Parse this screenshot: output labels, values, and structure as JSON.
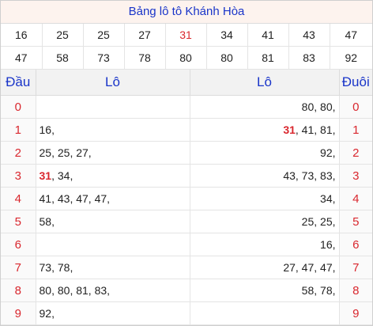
{
  "title": "Bảng lô tô Khánh Hòa",
  "numbers_row1": [
    "16",
    "25",
    "25",
    "27",
    "31",
    "34",
    "41",
    "43",
    "47"
  ],
  "numbers_row2": [
    "47",
    "58",
    "73",
    "78",
    "80",
    "80",
    "81",
    "83",
    "92"
  ],
  "highlight_number": "31",
  "highlight_color": "#d9272e",
  "accent_color": "#1a35c9",
  "headers": {
    "dau": "Đầu",
    "lo_left": "Lô",
    "lo_right": "Lô",
    "duoi": "Đuôi"
  },
  "rows": [
    {
      "dau": "0",
      "lo_dau": [],
      "lo_duoi": [
        "80",
        "80"
      ],
      "duoi": "0"
    },
    {
      "dau": "1",
      "lo_dau": [
        "16"
      ],
      "lo_duoi": [
        "31",
        "41",
        "81"
      ],
      "duoi": "1"
    },
    {
      "dau": "2",
      "lo_dau": [
        "25",
        "25",
        "27"
      ],
      "lo_duoi": [
        "92"
      ],
      "duoi": "2"
    },
    {
      "dau": "3",
      "lo_dau": [
        "31",
        "34"
      ],
      "lo_duoi": [
        "43",
        "73",
        "83"
      ],
      "duoi": "3"
    },
    {
      "dau": "4",
      "lo_dau": [
        "41",
        "43",
        "47",
        "47"
      ],
      "lo_duoi": [
        "34"
      ],
      "duoi": "4"
    },
    {
      "dau": "5",
      "lo_dau": [
        "58"
      ],
      "lo_duoi": [
        "25",
        "25"
      ],
      "duoi": "5"
    },
    {
      "dau": "6",
      "lo_dau": [],
      "lo_duoi": [
        "16"
      ],
      "duoi": "6"
    },
    {
      "dau": "7",
      "lo_dau": [
        "73",
        "78"
      ],
      "lo_duoi": [
        "27",
        "47",
        "47"
      ],
      "duoi": "7"
    },
    {
      "dau": "8",
      "lo_dau": [
        "80",
        "80",
        "81",
        "83"
      ],
      "lo_duoi": [
        "58",
        "78"
      ],
      "duoi": "8"
    },
    {
      "dau": "9",
      "lo_dau": [
        "92"
      ],
      "lo_duoi": [],
      "duoi": "9"
    }
  ]
}
